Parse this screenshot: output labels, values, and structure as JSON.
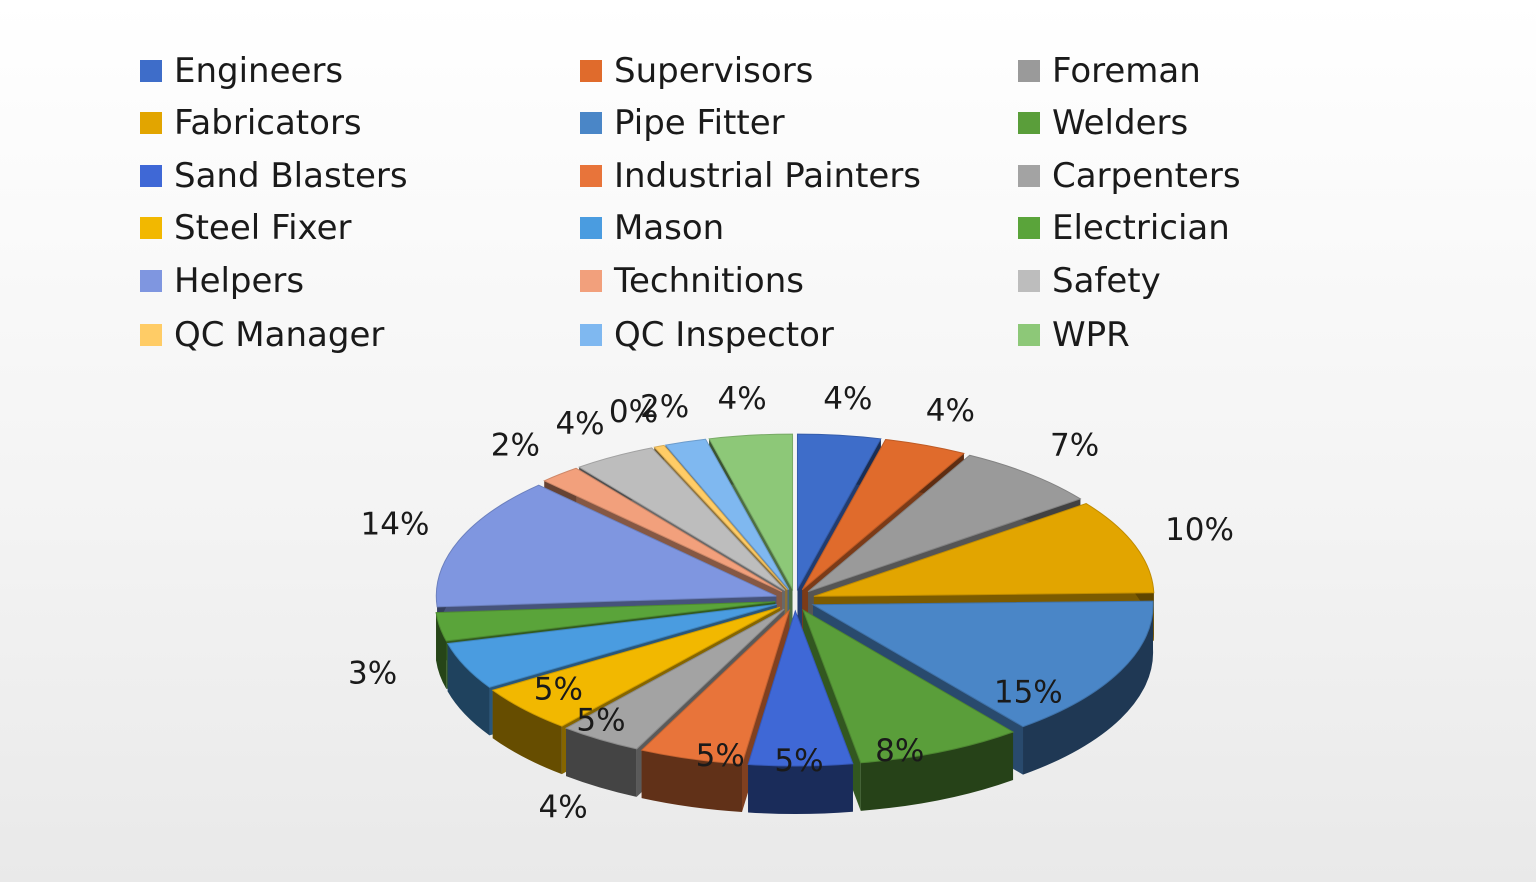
{
  "chart_data": {
    "type": "pie",
    "style": "3d-exploded",
    "legend_position": "top",
    "series": [
      {
        "name": "Engineers",
        "value": 4,
        "label": "4%",
        "color": "#3E6DC9"
      },
      {
        "name": "Supervisors",
        "value": 4,
        "label": "4%",
        "color": "#E06B2C"
      },
      {
        "name": "Foreman",
        "value": 7,
        "label": "7%",
        "color": "#9A9A9A"
      },
      {
        "name": "Fabricators",
        "value": 10,
        "label": "10%",
        "color": "#E2A500"
      },
      {
        "name": "Pipe Fitter",
        "value": 15,
        "label": "15%",
        "color": "#4A86C7"
      },
      {
        "name": "Welders",
        "value": 8,
        "label": "8%",
        "color": "#5A9E3A"
      },
      {
        "name": "Sand Blasters",
        "value": 5,
        "label": "5%",
        "color": "#3F68D6"
      },
      {
        "name": "Industrial Painters",
        "value": 5,
        "label": "5%",
        "color": "#E8743A"
      },
      {
        "name": "Carpenters",
        "value": 4,
        "label": "4%",
        "color": "#A3A3A3"
      },
      {
        "name": "Steel Fixer",
        "value": 5,
        "label": "5%",
        "color": "#F2B800"
      },
      {
        "name": "Mason",
        "value": 5,
        "label": "5%",
        "color": "#4A9CE0"
      },
      {
        "name": "Electrician",
        "value": 3,
        "label": "3%",
        "color": "#5AA43A"
      },
      {
        "name": "Helpers",
        "value": 14,
        "label": "14%",
        "color": "#7F96E0"
      },
      {
        "name": "Technitions",
        "value": 2,
        "label": "2%",
        "color": "#F2A07C"
      },
      {
        "name": "Safety",
        "value": 4,
        "label": "4%",
        "color": "#BDBDBD"
      },
      {
        "name": "QC Manager",
        "value": 0.5,
        "label": "0%",
        "color": "#FFCC66"
      },
      {
        "name": "QC Inspector",
        "value": 2,
        "label": "2%",
        "color": "#7FB8F0"
      },
      {
        "name": "WPR",
        "value": 4,
        "label": "4%",
        "color": "#8DC878"
      }
    ]
  }
}
